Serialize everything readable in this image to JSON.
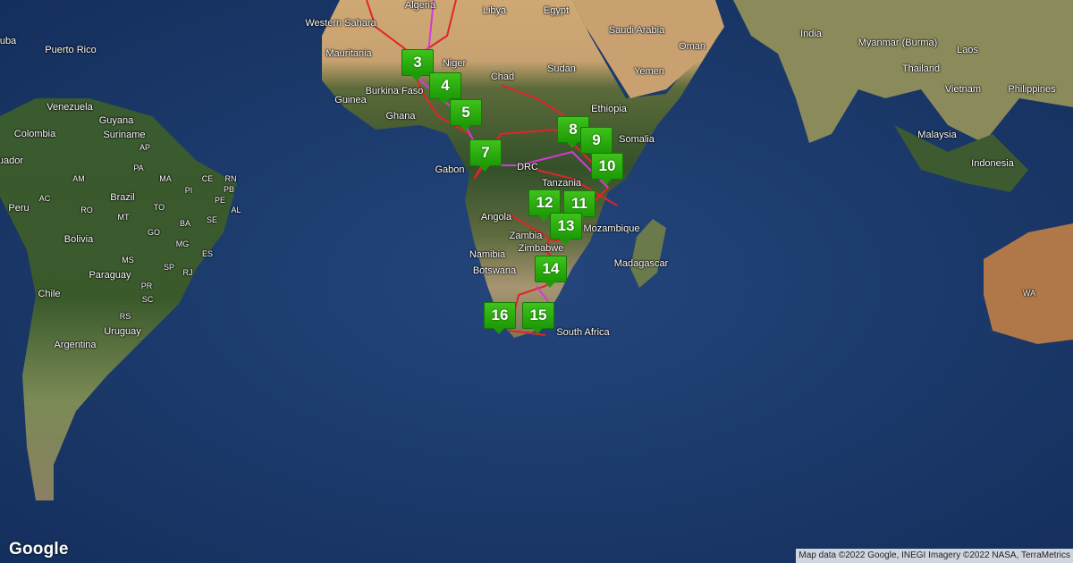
{
  "map": {
    "type": "satellite",
    "logo": "Google",
    "attribution": "Map data ©2022 Google, INEGI Imagery ©2022 NASA, TerraMetrics",
    "route_colors": {
      "primary": "#e0242a",
      "secondary": "#d63ad6"
    },
    "marker_color": "#2aab0f",
    "markers": [
      "3",
      "4",
      "5",
      "7",
      "8",
      "9",
      "10",
      "11",
      "12",
      "13",
      "14",
      "15",
      "16"
    ],
    "labels": [
      "Algeria",
      "Libya",
      "Egypt",
      "Western Sahara",
      "Saudi Arabia",
      "Oman",
      "India",
      "Myanmar (Burma)",
      "Laos",
      "Puerto Rico",
      "Mauritania",
      "Niger",
      "Chad",
      "Sudan",
      "Yemen",
      "Thailand",
      "Philippines",
      "Burkina Faso",
      "Vietnam",
      "Guinea",
      "Ghana",
      "Ethiopia",
      "Venezuela",
      "Guyana",
      "Suriname",
      "AP",
      "Colombia",
      "Somalia",
      "Malaysia",
      "Gabon",
      "DRC",
      "Indonesia",
      "Tanzania",
      "AM",
      "PA",
      "MA",
      "CE",
      "RN",
      "PB",
      "PE",
      "AL",
      "SE",
      "AC",
      "Brazil",
      "PI",
      "RO",
      "TO",
      "BA",
      "Peru",
      "MT",
      "Angola",
      "Zambia",
      "Mozambique",
      "Bolivia",
      "GO",
      "MG",
      "Namibia",
      "ES",
      "Madagascar",
      "MS",
      "SP",
      "Paraguay",
      "RJ",
      "Botswana",
      "Zimbabwe",
      "PR",
      "SC",
      "Chile",
      "RS",
      "South Africa",
      "Uruguay",
      "Argentina",
      "WA",
      "uba",
      "uador"
    ]
  }
}
